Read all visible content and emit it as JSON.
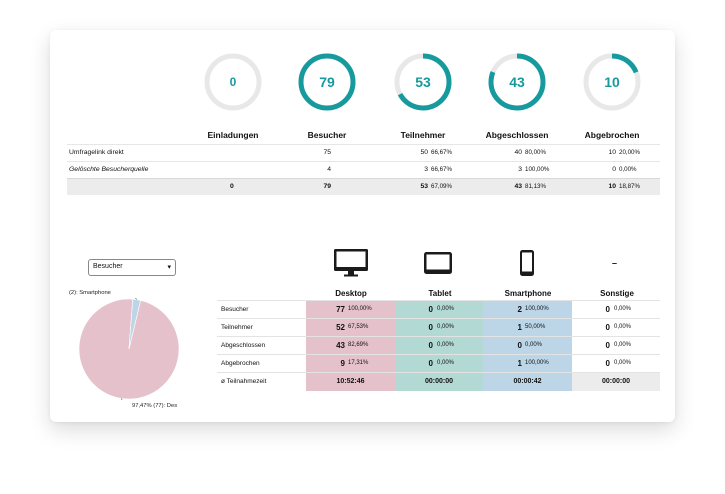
{
  "colors": {
    "accent": "#179a9e",
    "ring_track": "#e8e8e8",
    "desktop": "#e5c2cb",
    "tablet": "#b3d9d4",
    "smartphone": "#bcd6e8",
    "other": "#ececec"
  },
  "stats": [
    {
      "value": "0",
      "label": "Einladungen",
      "progress": 0
    },
    {
      "value": "79",
      "label": "Besucher",
      "progress": 1.0
    },
    {
      "value": "53",
      "label": "Teilnehmer",
      "progress": 0.6709
    },
    {
      "value": "43",
      "label": "Abgeschlossen",
      "progress": 0.8113
    },
    {
      "value": "10",
      "label": "Abgebrochen",
      "progress": 0.1887
    }
  ],
  "source_table": {
    "rows": [
      {
        "label": "Umfragelink direkt",
        "italic": false,
        "invites": "",
        "visitors": "75",
        "participants": "50",
        "participants_pct": "66,67%",
        "completed": "40",
        "completed_pct": "80,00%",
        "aborted": "10",
        "aborted_pct": "20,00%"
      },
      {
        "label": "Gelöschte Besucherquelle",
        "italic": true,
        "invites": "",
        "visitors": "4",
        "participants": "3",
        "participants_pct": "66,67%",
        "completed": "3",
        "completed_pct": "100,00%",
        "aborted": "0",
        "aborted_pct": "0,00%"
      }
    ],
    "total": {
      "label": "",
      "invites": "0",
      "visitors": "79",
      "participants": "53",
      "participants_pct": "67,09%",
      "completed": "43",
      "completed_pct": "81,13%",
      "aborted": "10",
      "aborted_pct": "18,87%"
    }
  },
  "chart_select": {
    "value": "Besucher"
  },
  "chart_data": {
    "type": "pie",
    "title": "",
    "slices": [
      {
        "name": "Des",
        "value": 77,
        "pct": "97,47%",
        "color": "#e5c2cb",
        "label": "97,47% (77): Des"
      },
      {
        "name": "Smartphone",
        "value": 2,
        "pct": "2,53%",
        "color": "#bcd6e8",
        "label": "(2): Smartphone"
      }
    ]
  },
  "devices": {
    "headers": [
      "Desktop",
      "Tablet",
      "Smartphone",
      "Sonstige"
    ],
    "other_icon": "–",
    "rows": [
      {
        "label": "Besucher",
        "desktop": "77",
        "desktop_pct": "100,00%",
        "tablet": "0",
        "tablet_pct": "0,00%",
        "smartphone": "2",
        "smartphone_pct": "100,00%",
        "other": "0",
        "other_pct": "0,00%"
      },
      {
        "label": "Teilnehmer",
        "desktop": "52",
        "desktop_pct": "67,53%",
        "tablet": "0",
        "tablet_pct": "0,00%",
        "smartphone": "1",
        "smartphone_pct": "50,00%",
        "other": "0",
        "other_pct": "0,00%"
      },
      {
        "label": "Abgeschlossen",
        "desktop": "43",
        "desktop_pct": "82,69%",
        "tablet": "0",
        "tablet_pct": "0,00%",
        "smartphone": "0",
        "smartphone_pct": "0,00%",
        "other": "0",
        "other_pct": "0,00%"
      },
      {
        "label": "Abgebrochen",
        "desktop": "9",
        "desktop_pct": "17,31%",
        "tablet": "0",
        "tablet_pct": "0,00%",
        "smartphone": "1",
        "smartphone_pct": "100,00%",
        "other": "0",
        "other_pct": "0,00%"
      }
    ],
    "time_row": {
      "label": "ø Teilnahmezeit",
      "desktop": "10:52:46",
      "tablet": "00:00:00",
      "smartphone": "00:00:42",
      "other": "00:00:00"
    }
  }
}
